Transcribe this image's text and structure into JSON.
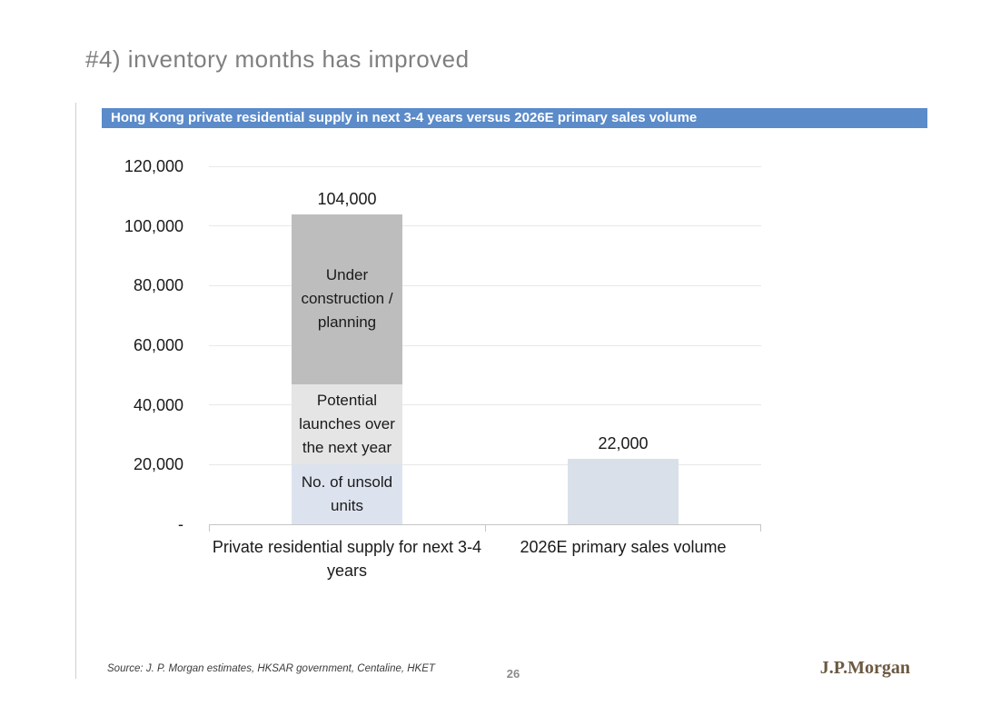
{
  "slide": {
    "title": "#4) inventory months has improved",
    "footer": {
      "source": "Source: J. P. Morgan estimates, HKSAR government, Centaline, HKET",
      "page_number": "26",
      "logo_text": "J.P.Morgan"
    }
  },
  "banner": {
    "text": "Hong Kong private residential supply in next 3-4 years versus 2026E primary sales volume"
  },
  "colors": {
    "banner_bg": "#5b8bc9",
    "banner_text": "#ffffff",
    "title_gray": "#7f7f7f",
    "gridline": "#e8e8e8",
    "axis_line": "#c6c6c6",
    "logo_brown": "#6b5a41",
    "segment_under_construction": "#bdbdbd",
    "segment_potential_launches": "#e5e5e5",
    "segment_unsold": "#dde3ee",
    "bar_2026e": "#dae0e9"
  },
  "chart_data": {
    "type": "bar",
    "stacked": true,
    "title": "Hong Kong private residential supply in next 3-4 years versus 2026E primary sales volume",
    "ylim": [
      0,
      120000
    ],
    "grid": true,
    "legend": "labels drawn inside bar segments",
    "y_ticks": [
      {
        "value": 120000,
        "label": "120,000"
      },
      {
        "value": 100000,
        "label": "100,000"
      },
      {
        "value": 80000,
        "label": "80,000"
      },
      {
        "value": 60000,
        "label": "60,000"
      },
      {
        "value": 40000,
        "label": "40,000"
      },
      {
        "value": 20000,
        "label": "20,000"
      },
      {
        "value": 0,
        "label": "-"
      }
    ],
    "bars": [
      {
        "category": "Private residential supply for next 3-4 years",
        "total": 104000,
        "total_label": "104,000",
        "segments": [
          {
            "label": "No. of unsold units",
            "value": 20000,
            "color": "#dde3ee"
          },
          {
            "label": "Potential launches over the next year",
            "value": 27000,
            "color": "#e5e5e5"
          },
          {
            "label": "Under construction / planning",
            "value": 57000,
            "color": "#bdbdbd"
          }
        ]
      },
      {
        "category": "2026E primary sales volume",
        "total": 22000,
        "total_label": "22,000",
        "segments": [
          {
            "label": "",
            "value": 22000,
            "color": "#dae0e9"
          }
        ]
      }
    ]
  }
}
